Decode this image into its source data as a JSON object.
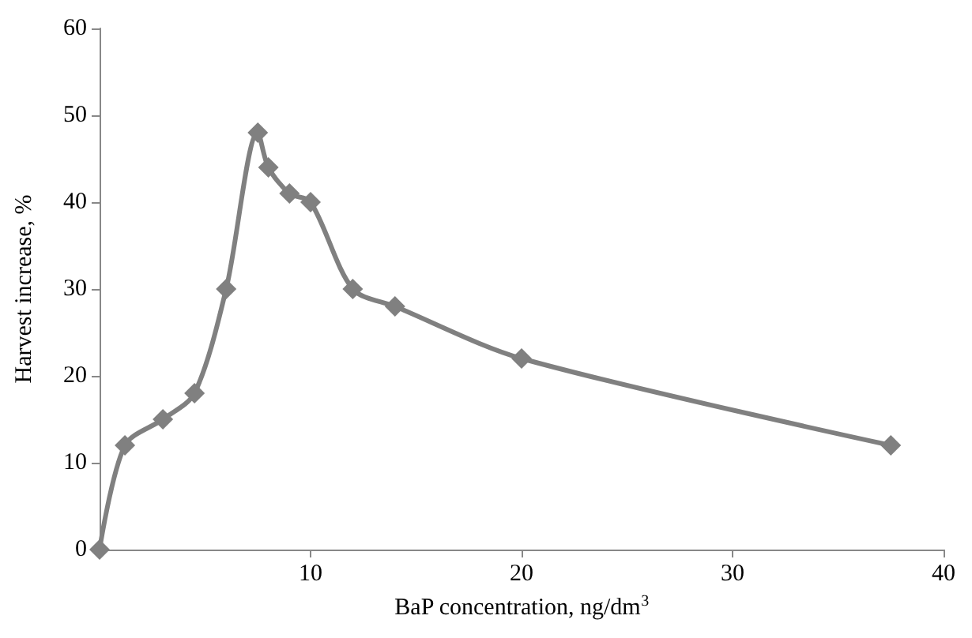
{
  "chart_data": {
    "type": "line",
    "xlabel": "BaP concentration, ng/dm$^{3}$",
    "ylabel": "Harvest increase, %",
    "x": [
      0,
      1.2,
      3,
      4.5,
      6,
      7.5,
      8,
      9,
      10,
      12,
      14,
      20,
      37.5
    ],
    "series": [
      {
        "color": "#808080",
        "values": [
          0,
          12,
          15,
          18,
          30,
          48,
          44,
          41,
          40,
          30,
          28,
          22,
          12
        ]
      }
    ],
    "xlim": [
      0,
      40
    ],
    "xticks": [
      {
        "value": 0,
        "label": null
      },
      10,
      20,
      30,
      40
    ],
    "ylim": [
      0,
      60
    ],
    "yticks": [
      0,
      10,
      20,
      30,
      40,
      50,
      60
    ],
    "grid": false,
    "marker": "diamond",
    "line_style": "solid"
  }
}
